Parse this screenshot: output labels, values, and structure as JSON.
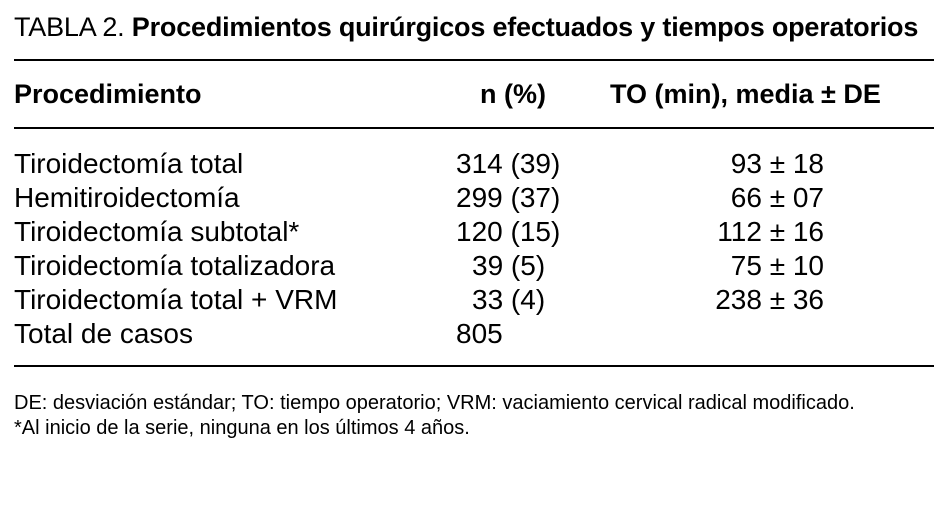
{
  "table": {
    "label": "TABLA 2.",
    "title": "Procedimientos quirúrgicos efectuados y tiempos operatorios",
    "headers": {
      "procedure": "Procedimiento",
      "n": "n (%)",
      "to": "TO (min), media ± DE"
    },
    "rows": [
      {
        "procedure": "Tiroidectomía total",
        "n": "314 (39)",
        "to": "93 ± 18"
      },
      {
        "procedure": "Hemitiroidectomía",
        "n": "299 (37)",
        "to": "66 ± 07"
      },
      {
        "procedure": "Tiroidectomía subtotal*",
        "n": "120 (15)",
        "to": "112 ± 16"
      },
      {
        "procedure": "Tiroidectomía totalizadora",
        "n": "39 (5)",
        "to": "75 ± 10"
      },
      {
        "procedure": "Tiroidectomía total + VRM",
        "n": "33 (4)",
        "to": "238 ± 36"
      },
      {
        "procedure": "Total de casos",
        "n": "805",
        "to": ""
      }
    ],
    "footnotes": [
      "DE: desviación estándar; TO: tiempo operatorio; VRM: vaciamiento cervical radical modificado.",
      "*Al inicio de la serie, ninguna en los últimos 4 años."
    ]
  }
}
